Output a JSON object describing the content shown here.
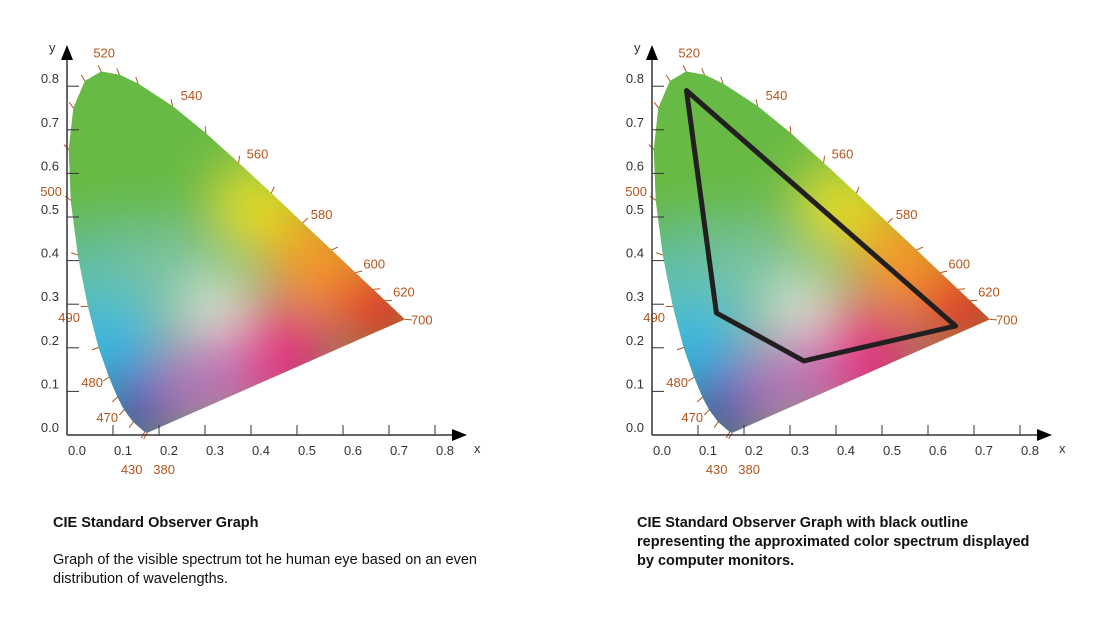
{
  "chart_data": [
    {
      "type": "scatter",
      "title": "CIE Standard Observer Graph",
      "description": "Graph of the visible spectrum tot he human eye based on an even distribution of wavelengths.",
      "xlabel": "x",
      "ylabel": "y",
      "xlim": [
        0,
        0.8
      ],
      "ylim": [
        0,
        0.8
      ],
      "xticks": [
        "0.0",
        "0.1",
        "0.2",
        "0.3",
        "0.4",
        "0.5",
        "0.6",
        "0.7",
        "0.8"
      ],
      "yticks": [
        "0.0",
        "0.1",
        "0.2",
        "0.3",
        "0.4",
        "0.5",
        "0.6",
        "0.7",
        "0.8"
      ],
      "wavelength_labels": [
        "380",
        "430",
        "470",
        "480",
        "490",
        "500",
        "520",
        "540",
        "560",
        "580",
        "600",
        "620",
        "700"
      ],
      "gamut_outline": null
    },
    {
      "type": "scatter",
      "title": "CIE Standard Observer Graph with black outline representing the approximated color spectrum displayed by computer monitors.",
      "description": "",
      "xlabel": "x",
      "ylabel": "y",
      "xlim": [
        0,
        0.8
      ],
      "ylim": [
        0,
        0.8
      ],
      "xticks": [
        "0.0",
        "0.1",
        "0.2",
        "0.3",
        "0.4",
        "0.5",
        "0.6",
        "0.7",
        "0.8"
      ],
      "yticks": [
        "0.0",
        "0.1",
        "0.2",
        "0.3",
        "0.4",
        "0.5",
        "0.6",
        "0.7",
        "0.8"
      ],
      "wavelength_labels": [
        "380",
        "430",
        "470",
        "480",
        "490",
        "500",
        "520",
        "540",
        "560",
        "580",
        "600",
        "620",
        "700"
      ],
      "gamut_outline": [
        [
          0.075,
          0.79
        ],
        [
          0.14,
          0.28
        ],
        [
          0.33,
          0.17
        ],
        [
          0.66,
          0.25
        ]
      ]
    }
  ],
  "locus": [
    [
      380,
      0.1741,
      0.005
    ],
    [
      430,
      0.1689,
      0.0069
    ],
    [
      460,
      0.144,
      0.0297
    ],
    [
      470,
      0.1241,
      0.0578
    ],
    [
      475,
      0.1096,
      0.0868
    ],
    [
      480,
      0.0913,
      0.1327
    ],
    [
      485,
      0.0687,
      0.2007
    ],
    [
      490,
      0.0454,
      0.295
    ],
    [
      495,
      0.0235,
      0.4127
    ],
    [
      500,
      0.0082,
      0.5384
    ],
    [
      505,
      0.0039,
      0.6548
    ],
    [
      510,
      0.0139,
      0.7502
    ],
    [
      515,
      0.0389,
      0.812
    ],
    [
      520,
      0.0743,
      0.8338
    ],
    [
      525,
      0.1142,
      0.8262
    ],
    [
      530,
      0.1547,
      0.8059
    ],
    [
      540,
      0.2296,
      0.7543
    ],
    [
      550,
      0.3016,
      0.6923
    ],
    [
      560,
      0.3731,
      0.6245
    ],
    [
      570,
      0.4441,
      0.5547
    ],
    [
      580,
      0.5125,
      0.4866
    ],
    [
      590,
      0.5752,
      0.4242
    ],
    [
      600,
      0.627,
      0.3725
    ],
    [
      610,
      0.6658,
      0.334
    ],
    [
      620,
      0.6915,
      0.3083
    ],
    [
      700,
      0.7347,
      0.2653
    ]
  ],
  "colors": {
    "label": "#b5541b",
    "outline": "#231f20"
  }
}
